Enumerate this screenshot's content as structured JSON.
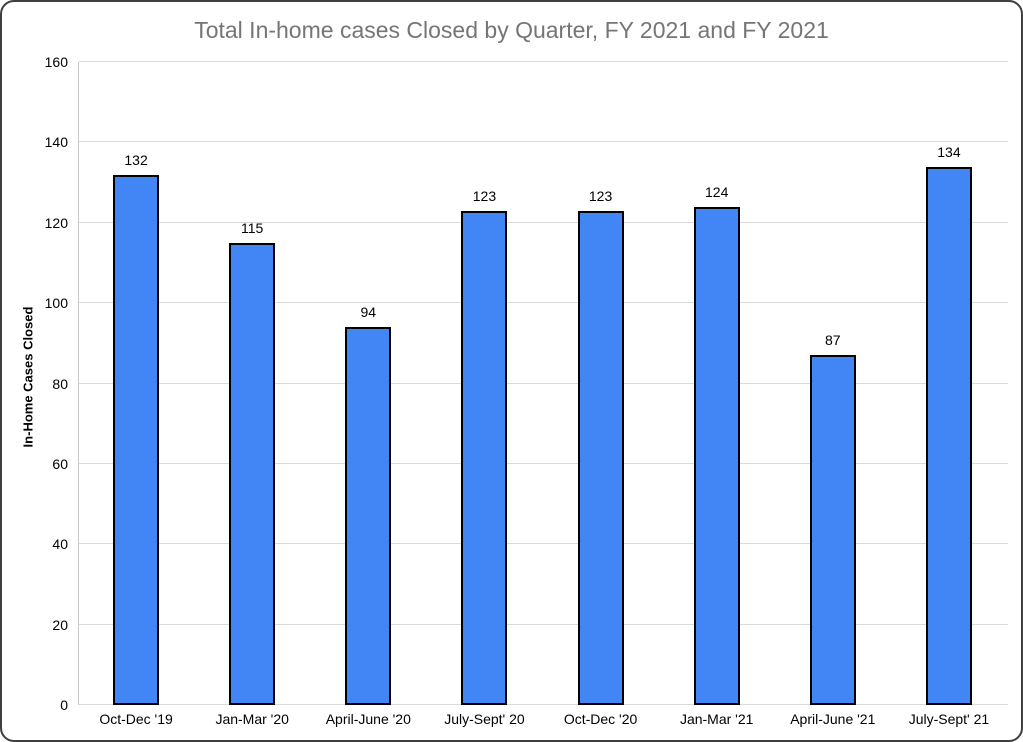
{
  "chart_data": {
    "type": "bar",
    "title": "Total In-home cases Closed by Quarter, FY 2021 and FY 2021",
    "categories": [
      "Oct-Dec '19",
      "Jan-Mar '20",
      "April-June '20",
      "July-Sept' 20",
      "Oct-Dec '20",
      "Jan-Mar '21",
      "April-June '21",
      "July-Sept' 21"
    ],
    "values": [
      132,
      115,
      94,
      123,
      123,
      124,
      87,
      134
    ],
    "xlabel": "",
    "ylabel": "In-Home Cases Closed",
    "ylim": [
      0,
      160
    ],
    "yticks": [
      0,
      20,
      40,
      60,
      80,
      100,
      120,
      140,
      160
    ],
    "grid": true,
    "legend": false,
    "data_labels": true,
    "colors": {
      "bar_fill": "#4285f4",
      "bar_border": "#000000",
      "title_text": "#757575",
      "axis_text": "#000000",
      "gridline": "#dadada",
      "window_border": "#3f3f3f"
    }
  }
}
